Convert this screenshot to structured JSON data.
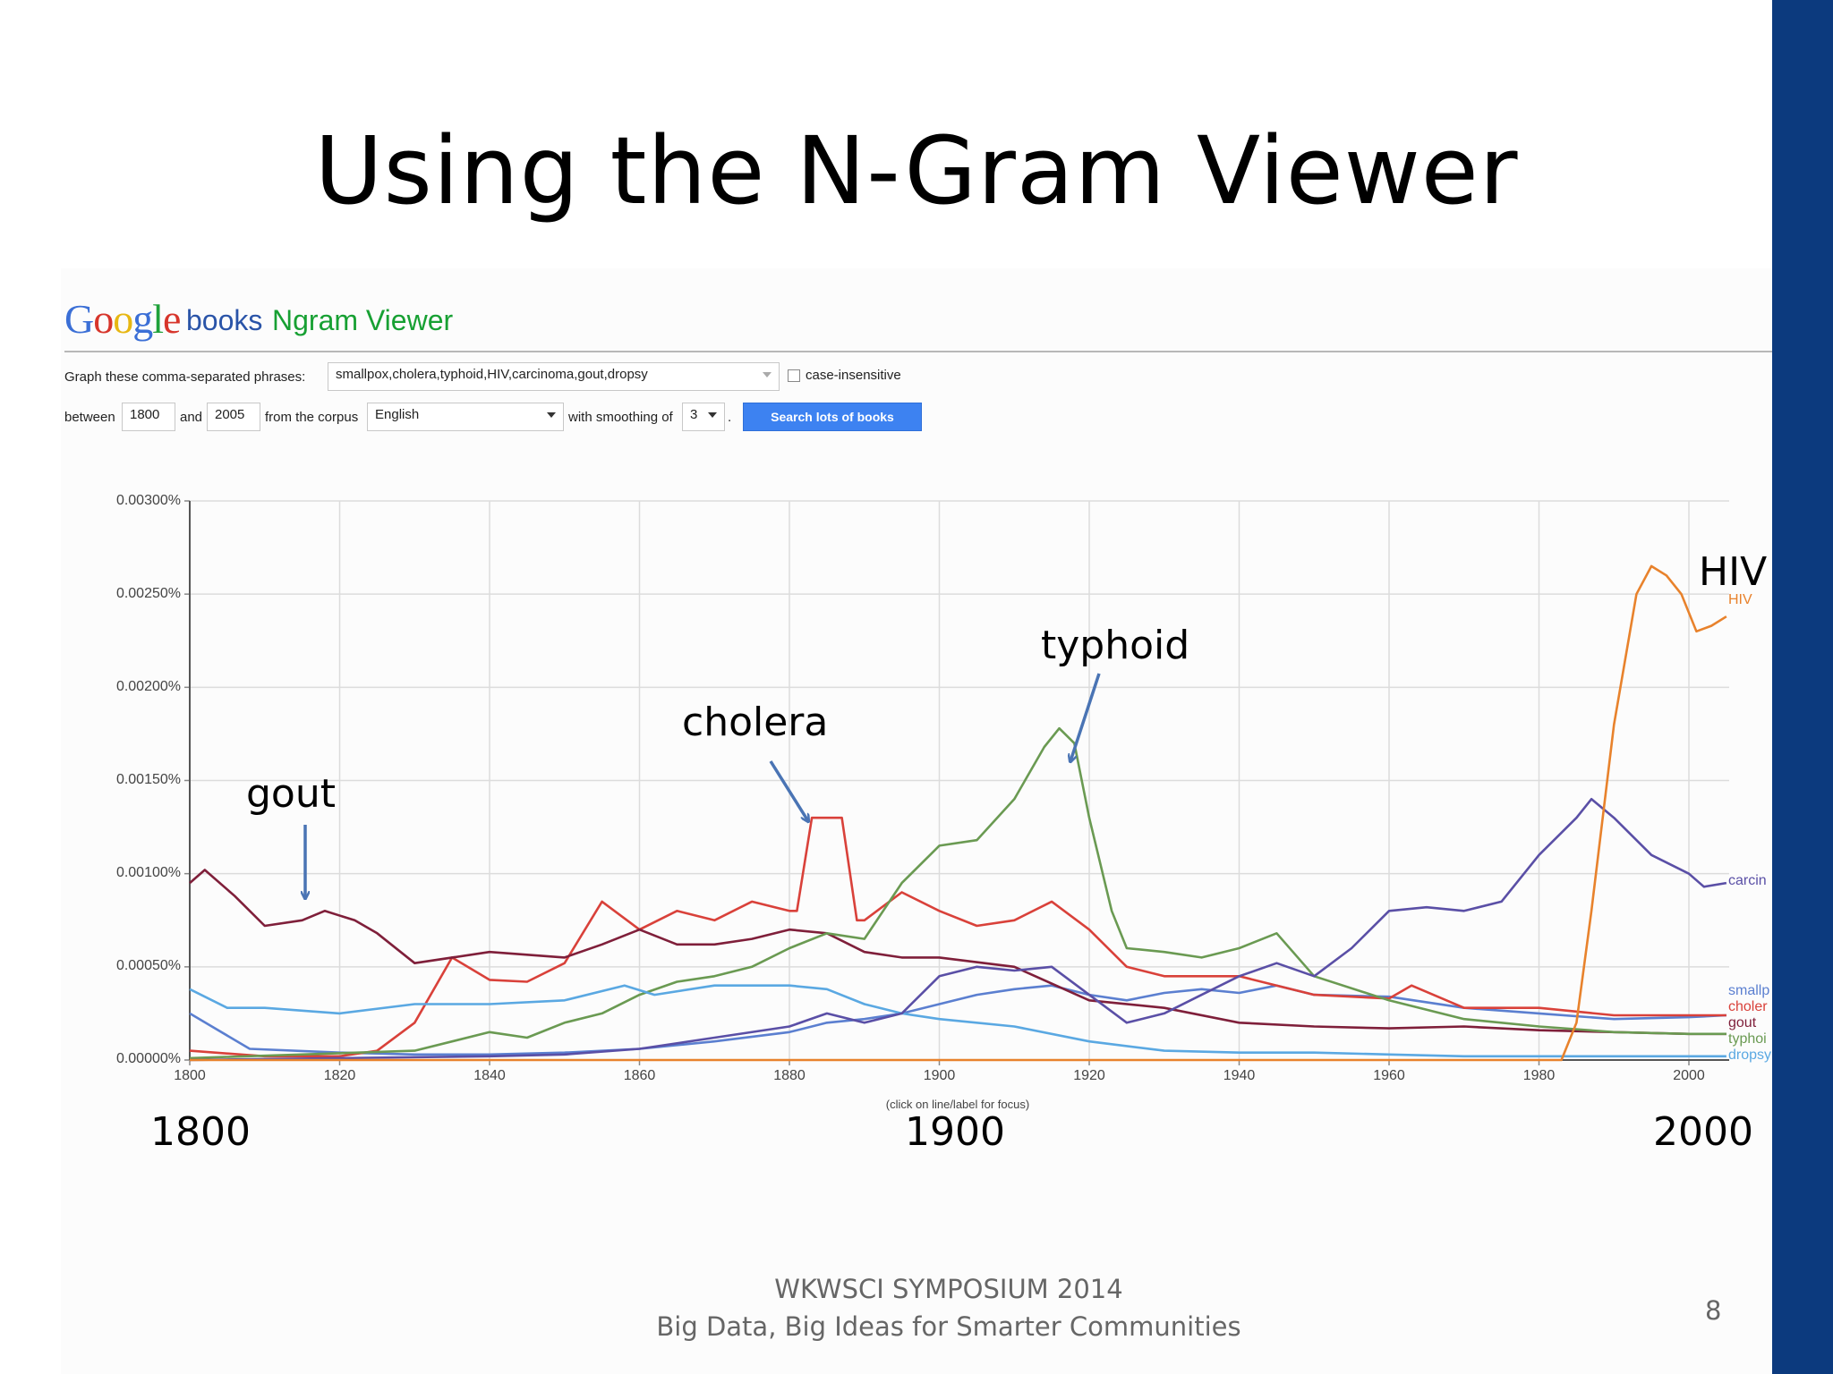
{
  "slide": {
    "title": "Using the N-Gram Viewer",
    "footer_line1": "WKWSCI  SYMPOSIUM  2014",
    "footer_line2": "Big Data, Big Ideas for Smarter Communities",
    "page_number": "8",
    "accent_bar_color": "#0c3a7e"
  },
  "header": {
    "logo_letters": [
      {
        "ch": "G",
        "color": "#3b6fd6"
      },
      {
        "ch": "o",
        "color": "#d7352b"
      },
      {
        "ch": "o",
        "color": "#e7b712"
      },
      {
        "ch": "g",
        "color": "#3b6fd6"
      },
      {
        "ch": "l",
        "color": "#1fa13a"
      },
      {
        "ch": "e",
        "color": "#d7352b"
      }
    ],
    "books": "books",
    "ngram_viewer": "Ngram Viewer"
  },
  "form": {
    "phrases_label": "Graph these comma-separated phrases:",
    "phrases_value": "smallpox,cholera,typhoid,HIV,carcinoma,gout,dropsy",
    "case_insensitive": "case-insensitive",
    "between": "between",
    "start_year": "1800",
    "and": "and",
    "end_year": "2005",
    "from_corpus": "from the corpus",
    "corpus": "English",
    "with_smoothing": "with smoothing of",
    "smoothing": "3",
    "period": ".",
    "search_button": "Search lots of books"
  },
  "click_hint": "(click on line/label for focus)",
  "annotations": {
    "gout": "gout",
    "cholera": "cholera",
    "typhoid": "typhoid",
    "hiv": "HIV",
    "year_1800": "1800",
    "year_1900": "1900",
    "year_2000": "2000"
  },
  "chart_data": {
    "type": "line",
    "title": "",
    "xlabel": "",
    "ylabel": "",
    "xlim": [
      1800,
      2005
    ],
    "ylim": [
      0,
      0.003
    ],
    "grid": true,
    "legend": "end-of-line labels",
    "x_ticks": [
      "1800",
      "1820",
      "1840",
      "1860",
      "1880",
      "1900",
      "1920",
      "1940",
      "1960",
      "1980",
      "2000"
    ],
    "y_ticks": [
      "0.00000%",
      "0.00050%",
      "0.00100%",
      "0.00150%",
      "0.00200%",
      "0.00250%",
      "0.00300%"
    ],
    "series": [
      {
        "name": "smallp",
        "color": "#5b7fd0",
        "x": [
          1800,
          1808,
          1820,
          1830,
          1840,
          1850,
          1860,
          1870,
          1880,
          1885,
          1890,
          1895,
          1900,
          1905,
          1910,
          1915,
          1920,
          1925,
          1930,
          1935,
          1940,
          1945,
          1950,
          1960,
          1970,
          1980,
          1990,
          2000,
          2005
        ],
        "y": [
          0.00025,
          6e-05,
          4e-05,
          3e-05,
          3e-05,
          4e-05,
          6e-05,
          0.0001,
          0.00015,
          0.0002,
          0.00022,
          0.00025,
          0.0003,
          0.00035,
          0.00038,
          0.0004,
          0.00035,
          0.00032,
          0.00036,
          0.00038,
          0.00036,
          0.0004,
          0.00035,
          0.00034,
          0.00028,
          0.00025,
          0.00022,
          0.00023,
          0.00024
        ]
      },
      {
        "name": "choler",
        "color": "#d9413a",
        "x": [
          1800,
          1810,
          1820,
          1825,
          1830,
          1835,
          1840,
          1845,
          1850,
          1855,
          1860,
          1865,
          1870,
          1875,
          1880,
          1881,
          1883,
          1887,
          1889,
          1890,
          1895,
          1900,
          1905,
          1910,
          1915,
          1920,
          1925,
          1930,
          1940,
          1945,
          1950,
          1960,
          1963,
          1970,
          1980,
          1990,
          2000,
          2005
        ],
        "y": [
          5e-05,
          2e-05,
          2e-05,
          5e-05,
          0.0002,
          0.00055,
          0.00043,
          0.00042,
          0.00052,
          0.00085,
          0.0007,
          0.0008,
          0.00075,
          0.00085,
          0.0008,
          0.0008,
          0.0013,
          0.0013,
          0.00075,
          0.00075,
          0.0009,
          0.0008,
          0.00072,
          0.00075,
          0.00085,
          0.0007,
          0.0005,
          0.00045,
          0.00045,
          0.0004,
          0.00035,
          0.00033,
          0.0004,
          0.00028,
          0.00028,
          0.00024,
          0.00024,
          0.00024
        ]
      },
      {
        "name": "gout",
        "color": "#7f1f3a",
        "x": [
          1800,
          1802,
          1806,
          1810,
          1815,
          1818,
          1822,
          1825,
          1830,
          1840,
          1850,
          1855,
          1860,
          1865,
          1870,
          1875,
          1880,
          1885,
          1890,
          1895,
          1900,
          1910,
          1920,
          1930,
          1940,
          1950,
          1960,
          1970,
          1980,
          1990,
          2000,
          2005
        ],
        "y": [
          0.00095,
          0.00102,
          0.00088,
          0.00072,
          0.00075,
          0.0008,
          0.00075,
          0.00068,
          0.00052,
          0.00058,
          0.00055,
          0.00062,
          0.0007,
          0.00062,
          0.00062,
          0.00065,
          0.0007,
          0.00068,
          0.00058,
          0.00055,
          0.00055,
          0.0005,
          0.00032,
          0.00028,
          0.0002,
          0.00018,
          0.00017,
          0.00018,
          0.00016,
          0.00015,
          0.00014,
          0.00014
        ]
      },
      {
        "name": "typhoi",
        "color": "#6a9a52",
        "x": [
          1800,
          1830,
          1840,
          1845,
          1850,
          1855,
          1860,
          1865,
          1870,
          1875,
          1880,
          1885,
          1890,
          1895,
          1900,
          1905,
          1910,
          1914,
          1916,
          1918,
          1920,
          1923,
          1925,
          1930,
          1935,
          1940,
          1945,
          1950,
          1960,
          1970,
          1980,
          1990,
          2000,
          2005
        ],
        "y": [
          1e-05,
          5e-05,
          0.00015,
          0.00012,
          0.0002,
          0.00025,
          0.00035,
          0.00042,
          0.00045,
          0.0005,
          0.0006,
          0.00068,
          0.00065,
          0.00095,
          0.00115,
          0.00118,
          0.0014,
          0.00168,
          0.00178,
          0.0017,
          0.0013,
          0.0008,
          0.0006,
          0.00058,
          0.00055,
          0.0006,
          0.00068,
          0.00045,
          0.00032,
          0.00022,
          0.00018,
          0.00015,
          0.00014,
          0.00014
        ]
      },
      {
        "name": "dropsy",
        "color": "#5aa8e2",
        "x": [
          1800,
          1805,
          1810,
          1820,
          1830,
          1840,
          1850,
          1858,
          1862,
          1870,
          1880,
          1885,
          1890,
          1895,
          1900,
          1910,
          1920,
          1930,
          1940,
          1950,
          1960,
          1970,
          1980,
          1990,
          2000,
          2005
        ],
        "y": [
          0.00038,
          0.00028,
          0.00028,
          0.00025,
          0.0003,
          0.0003,
          0.00032,
          0.0004,
          0.00035,
          0.0004,
          0.0004,
          0.00038,
          0.0003,
          0.00025,
          0.00022,
          0.00018,
          0.0001,
          5e-05,
          4e-05,
          4e-05,
          3e-05,
          2e-05,
          2e-05,
          2e-05,
          2e-05,
          2e-05
        ]
      },
      {
        "name": "carcin",
        "color": "#5a4fa6",
        "x": [
          1800,
          1820,
          1840,
          1850,
          1860,
          1870,
          1880,
          1885,
          1890,
          1895,
          1900,
          1905,
          1910,
          1915,
          1920,
          1925,
          1930,
          1935,
          1940,
          1945,
          1950,
          1955,
          1960,
          1965,
          1970,
          1975,
          1980,
          1985,
          1987,
          1990,
          1995,
          2000,
          2002,
          2005
        ],
        "y": [
          0.0,
          1e-05,
          2e-05,
          3e-05,
          6e-05,
          0.00012,
          0.00018,
          0.00025,
          0.0002,
          0.00025,
          0.00045,
          0.0005,
          0.00048,
          0.0005,
          0.00035,
          0.0002,
          0.00025,
          0.00035,
          0.00045,
          0.00052,
          0.00045,
          0.0006,
          0.0008,
          0.00082,
          0.0008,
          0.00085,
          0.0011,
          0.0013,
          0.0014,
          0.0013,
          0.0011,
          0.001,
          0.00093,
          0.00095
        ]
      },
      {
        "name": "HIV",
        "color": "#e8822c",
        "x": [
          1800,
          1983,
          1985,
          1987,
          1990,
          1993,
          1995,
          1997,
          1999,
          2001,
          2003,
          2005
        ],
        "y": [
          0.0,
          0.0,
          0.0002,
          0.0008,
          0.0018,
          0.0025,
          0.00265,
          0.0026,
          0.0025,
          0.0023,
          0.00233,
          0.00238
        ]
      }
    ]
  }
}
